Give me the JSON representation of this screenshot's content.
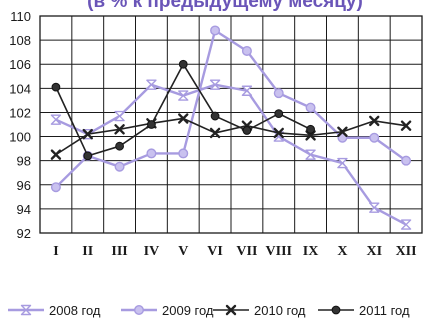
{
  "chart_data": {
    "type": "line",
    "title": "(в % к предыдущему месяцу)",
    "categories": [
      "I",
      "II",
      "III",
      "IV",
      "V",
      "VI",
      "VII",
      "VIII",
      "IX",
      "X",
      "XI",
      "XII"
    ],
    "ylim": [
      92,
      110
    ],
    "yticks": [
      92,
      94,
      96,
      98,
      100,
      102,
      104,
      106,
      108,
      110
    ],
    "grid": true,
    "legend_position": "bottom",
    "series": [
      {
        "name": "2008 год",
        "marker": "hourglass",
        "color": "#a79be0",
        "values": [
          101.4,
          100.2,
          101.7,
          104.3,
          103.4,
          104.3,
          103.8,
          100.0,
          98.5,
          97.8,
          94.1,
          92.7
        ]
      },
      {
        "name": "2009 год",
        "marker": "circle-open",
        "color": "#a79be0",
        "values": [
          95.8,
          98.4,
          97.5,
          98.6,
          98.6,
          108.8,
          107.1,
          103.6,
          102.4,
          99.9,
          99.9,
          98.0
        ]
      },
      {
        "name": "2010 год",
        "marker": "cross",
        "color": "#222222",
        "values": [
          98.5,
          100.2,
          100.6,
          101.1,
          101.5,
          100.3,
          100.9,
          100.3,
          100.1,
          100.4,
          101.3,
          100.9
        ]
      },
      {
        "name": "2011 год",
        "marker": "circle-filled",
        "color": "#222222",
        "values": [
          104.1,
          98.4,
          99.2,
          101.0,
          106.0,
          101.7,
          100.5,
          101.9,
          100.6,
          null,
          null,
          null
        ]
      }
    ]
  }
}
